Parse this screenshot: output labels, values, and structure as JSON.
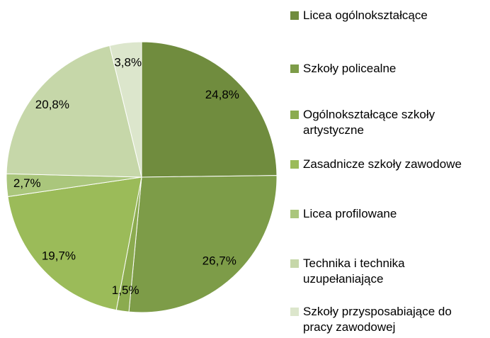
{
  "chart_data": {
    "type": "pie",
    "categories": [
      "Licea ogólnokształcące",
      "Szkoły policealne",
      "Ogólnokształcące szkoły artystyczne",
      "Zasadnicze szkoły zawodowe",
      "Licea profilowane",
      "Technika i technika uzupełaniające",
      "Szkoły przysposabiające do pracy zawodowej"
    ],
    "values": [
      24.8,
      26.7,
      1.5,
      19.7,
      2.7,
      20.8,
      3.8
    ],
    "value_labels": [
      "24,8%",
      "26,7%",
      "1,5%",
      "19,7%",
      "2,7%",
      "20,8%",
      "3,8%"
    ],
    "colors": [
      "#708c3e",
      "#7d9c48",
      "#8bab4f",
      "#9bbb59",
      "#aac67c",
      "#c6d7a9",
      "#dce6cc"
    ],
    "legend": "right"
  }
}
